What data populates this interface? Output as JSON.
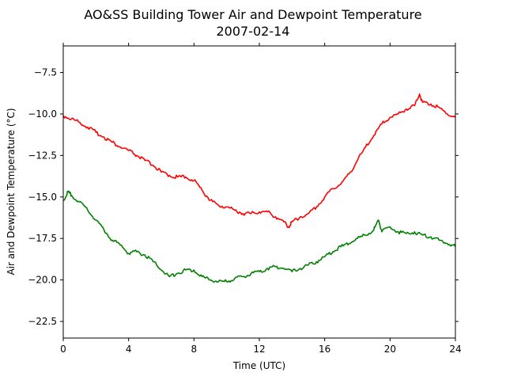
{
  "chart_data": {
    "type": "line",
    "title": "AO&SS Building Tower Air and Dewpoint Temperature",
    "subtitle": "2007-02-14",
    "xlabel": "Time (UTC)",
    "ylabel": "Air and Dewpoint Temperature (°C)",
    "xlim": [
      0,
      24
    ],
    "ylim": [
      -23.5,
      -5.9
    ],
    "x_ticks": [
      0,
      4,
      8,
      12,
      16,
      20,
      24
    ],
    "y_ticks": [
      -22.5,
      -20.0,
      -17.5,
      -15.0,
      -12.5,
      -10.0,
      -7.5
    ],
    "grid": false,
    "series": [
      {
        "color": "#ff0000",
        "x": [
          0,
          0.5,
          1,
          1.5,
          2,
          2.5,
          3,
          3.5,
          4,
          4.5,
          5,
          5.5,
          6,
          6.5,
          7,
          7.5,
          8,
          8.5,
          9,
          9.5,
          10,
          10.5,
          11,
          11.5,
          12,
          12.5,
          13,
          13.5,
          13.8,
          14,
          14.5,
          15,
          15.5,
          16,
          16.5,
          17,
          17.5,
          18,
          18.5,
          19,
          19.5,
          20,
          20.5,
          21,
          21.5,
          21.8,
          22,
          22.5,
          23,
          23.5,
          24
        ],
        "y": [
          -10.1,
          -10.3,
          -10.5,
          -10.8,
          -11.1,
          -11.4,
          -11.7,
          -12.0,
          -12.2,
          -12.5,
          -12.8,
          -13.1,
          -13.5,
          -13.7,
          -13.8,
          -13.8,
          -14.0,
          -14.6,
          -15.2,
          -15.5,
          -15.6,
          -15.8,
          -16.0,
          -16.0,
          -15.9,
          -15.9,
          -16.2,
          -16.5,
          -16.8,
          -16.5,
          -16.2,
          -16.0,
          -15.6,
          -15.0,
          -14.5,
          -14.2,
          -13.6,
          -12.8,
          -12.0,
          -11.3,
          -10.6,
          -10.2,
          -10.0,
          -9.7,
          -9.5,
          -8.8,
          -9.3,
          -9.4,
          -9.6,
          -10.0,
          -10.2
        ]
      },
      {
        "color": "#008000",
        "x": [
          0,
          0.3,
          0.5,
          1,
          1.5,
          2,
          2.5,
          3,
          3.5,
          4,
          4.5,
          5,
          5.5,
          6,
          6.5,
          7,
          7.5,
          8,
          8.5,
          9,
          9.5,
          10,
          10.5,
          11,
          11.5,
          12,
          12.5,
          13,
          13.5,
          14,
          14.5,
          15,
          15.5,
          16,
          16.5,
          17,
          17.5,
          18,
          18.5,
          19,
          19.3,
          19.5,
          20,
          20.5,
          21,
          21.5,
          22,
          22.5,
          23,
          23.5,
          24
        ],
        "y": [
          -15.2,
          -14.7,
          -14.9,
          -15.3,
          -15.8,
          -16.4,
          -17.0,
          -17.6,
          -17.9,
          -18.4,
          -18.3,
          -18.5,
          -18.9,
          -19.4,
          -19.8,
          -19.6,
          -19.4,
          -19.4,
          -19.8,
          -20.0,
          -20.1,
          -20.1,
          -19.9,
          -19.8,
          -19.6,
          -19.5,
          -19.3,
          -19.2,
          -19.3,
          -19.5,
          -19.3,
          -19.1,
          -18.9,
          -18.6,
          -18.3,
          -18.0,
          -17.8,
          -17.5,
          -17.3,
          -17.0,
          -16.4,
          -17.1,
          -16.8,
          -17.1,
          -17.2,
          -17.1,
          -17.3,
          -17.4,
          -17.6,
          -17.8,
          -18.0
        ]
      }
    ]
  }
}
